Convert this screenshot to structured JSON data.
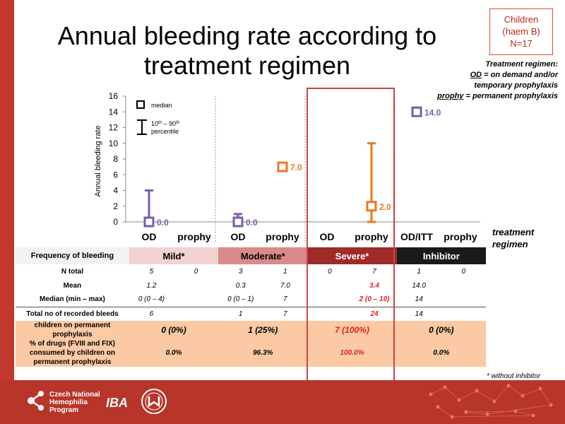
{
  "title": "Annual bleeding rate according to treatment regimen",
  "badge": {
    "line1": "Children",
    "line2": "(haem B)",
    "line3": "N=17"
  },
  "regimen_legend": {
    "heading": "Treatment regimen:",
    "od_term": "OD",
    "od_def": " = on demand and/or",
    "od_def2": "temporary prophylaxis",
    "prophy_term": "prophy",
    "prophy_def": " = permanent prophylaxis"
  },
  "treatment_regimen_label": [
    "treatment",
    "regimen"
  ],
  "chart_data": {
    "type": "scatter",
    "ylabel": "Annual bleeding rate",
    "ylim": [
      0,
      16
    ],
    "yticks": [
      0,
      2,
      4,
      6,
      8,
      10,
      12,
      14,
      16
    ],
    "legend": {
      "median": "median",
      "range_line1": "10",
      "range_sup1": "th",
      "range_mid": " – 90",
      "range_sup2": "th",
      "range_line2": "percentile"
    },
    "categories": [
      "OD",
      "prophy",
      "OD",
      "prophy",
      "OD",
      "prophy",
      "OD/ITT",
      "prophy"
    ],
    "points": [
      {
        "category": 0,
        "median": 0.0,
        "low": 0,
        "high": 4,
        "color": "#7b5ea7",
        "label": "0.0"
      },
      {
        "category": 2,
        "median": 0.0,
        "low": 0,
        "high": 1,
        "color": "#7b5ea7",
        "label": "0.0"
      },
      {
        "category": 3,
        "median": 7.0,
        "low": null,
        "high": null,
        "color": "#e87722",
        "label": "7.0"
      },
      {
        "category": 5,
        "median": 2.0,
        "low": 0,
        "high": 10,
        "color": "#e87722",
        "label": "2.0"
      },
      {
        "category": 6,
        "median": 14.0,
        "low": null,
        "high": null,
        "color": "#7b5ea7",
        "label": "14.0"
      }
    ]
  },
  "table": {
    "header": {
      "label": "Frequency of bleeding",
      "groups": [
        "Mild*",
        "Moderate*",
        "Severe*",
        "Inhibitor"
      ]
    },
    "rows": [
      {
        "label": "N total",
        "cells": [
          "5",
          "0",
          "3",
          "1",
          "0",
          "7",
          "1",
          "0"
        ]
      },
      {
        "label": "Mean",
        "cells": [
          "1.2",
          "",
          "0.3",
          "7.0",
          "",
          "3.4",
          "14.0",
          ""
        ]
      },
      {
        "label": "Median (min – max)",
        "cells": [
          "0 (0 – 4)",
          "",
          "0 (0 – 1)",
          "7",
          "",
          "2 (0 – 10)",
          "14",
          ""
        ]
      },
      {
        "label": "Total no of recorded bleeds",
        "cells": [
          "6",
          "",
          "1",
          "7",
          "",
          "24",
          "14",
          ""
        ]
      }
    ],
    "permanent": {
      "label": "children on permanent prophylaxis",
      "cells": [
        "0 (0%)",
        "1 (25%)",
        "7 (100%)",
        "0 (0%)"
      ]
    },
    "drugs": {
      "label": "% of drugs (FVIII and FIX) consumed by children on permanent prophylaxis",
      "cells": [
        "0.0%",
        "96.3%",
        "100.0%",
        "0.0%"
      ]
    }
  },
  "footnote": "* without inhibitor",
  "footer": {
    "org1": "Czech National",
    "org2": "Hemophilia",
    "org3": "Program",
    "logo2": "IBA"
  }
}
